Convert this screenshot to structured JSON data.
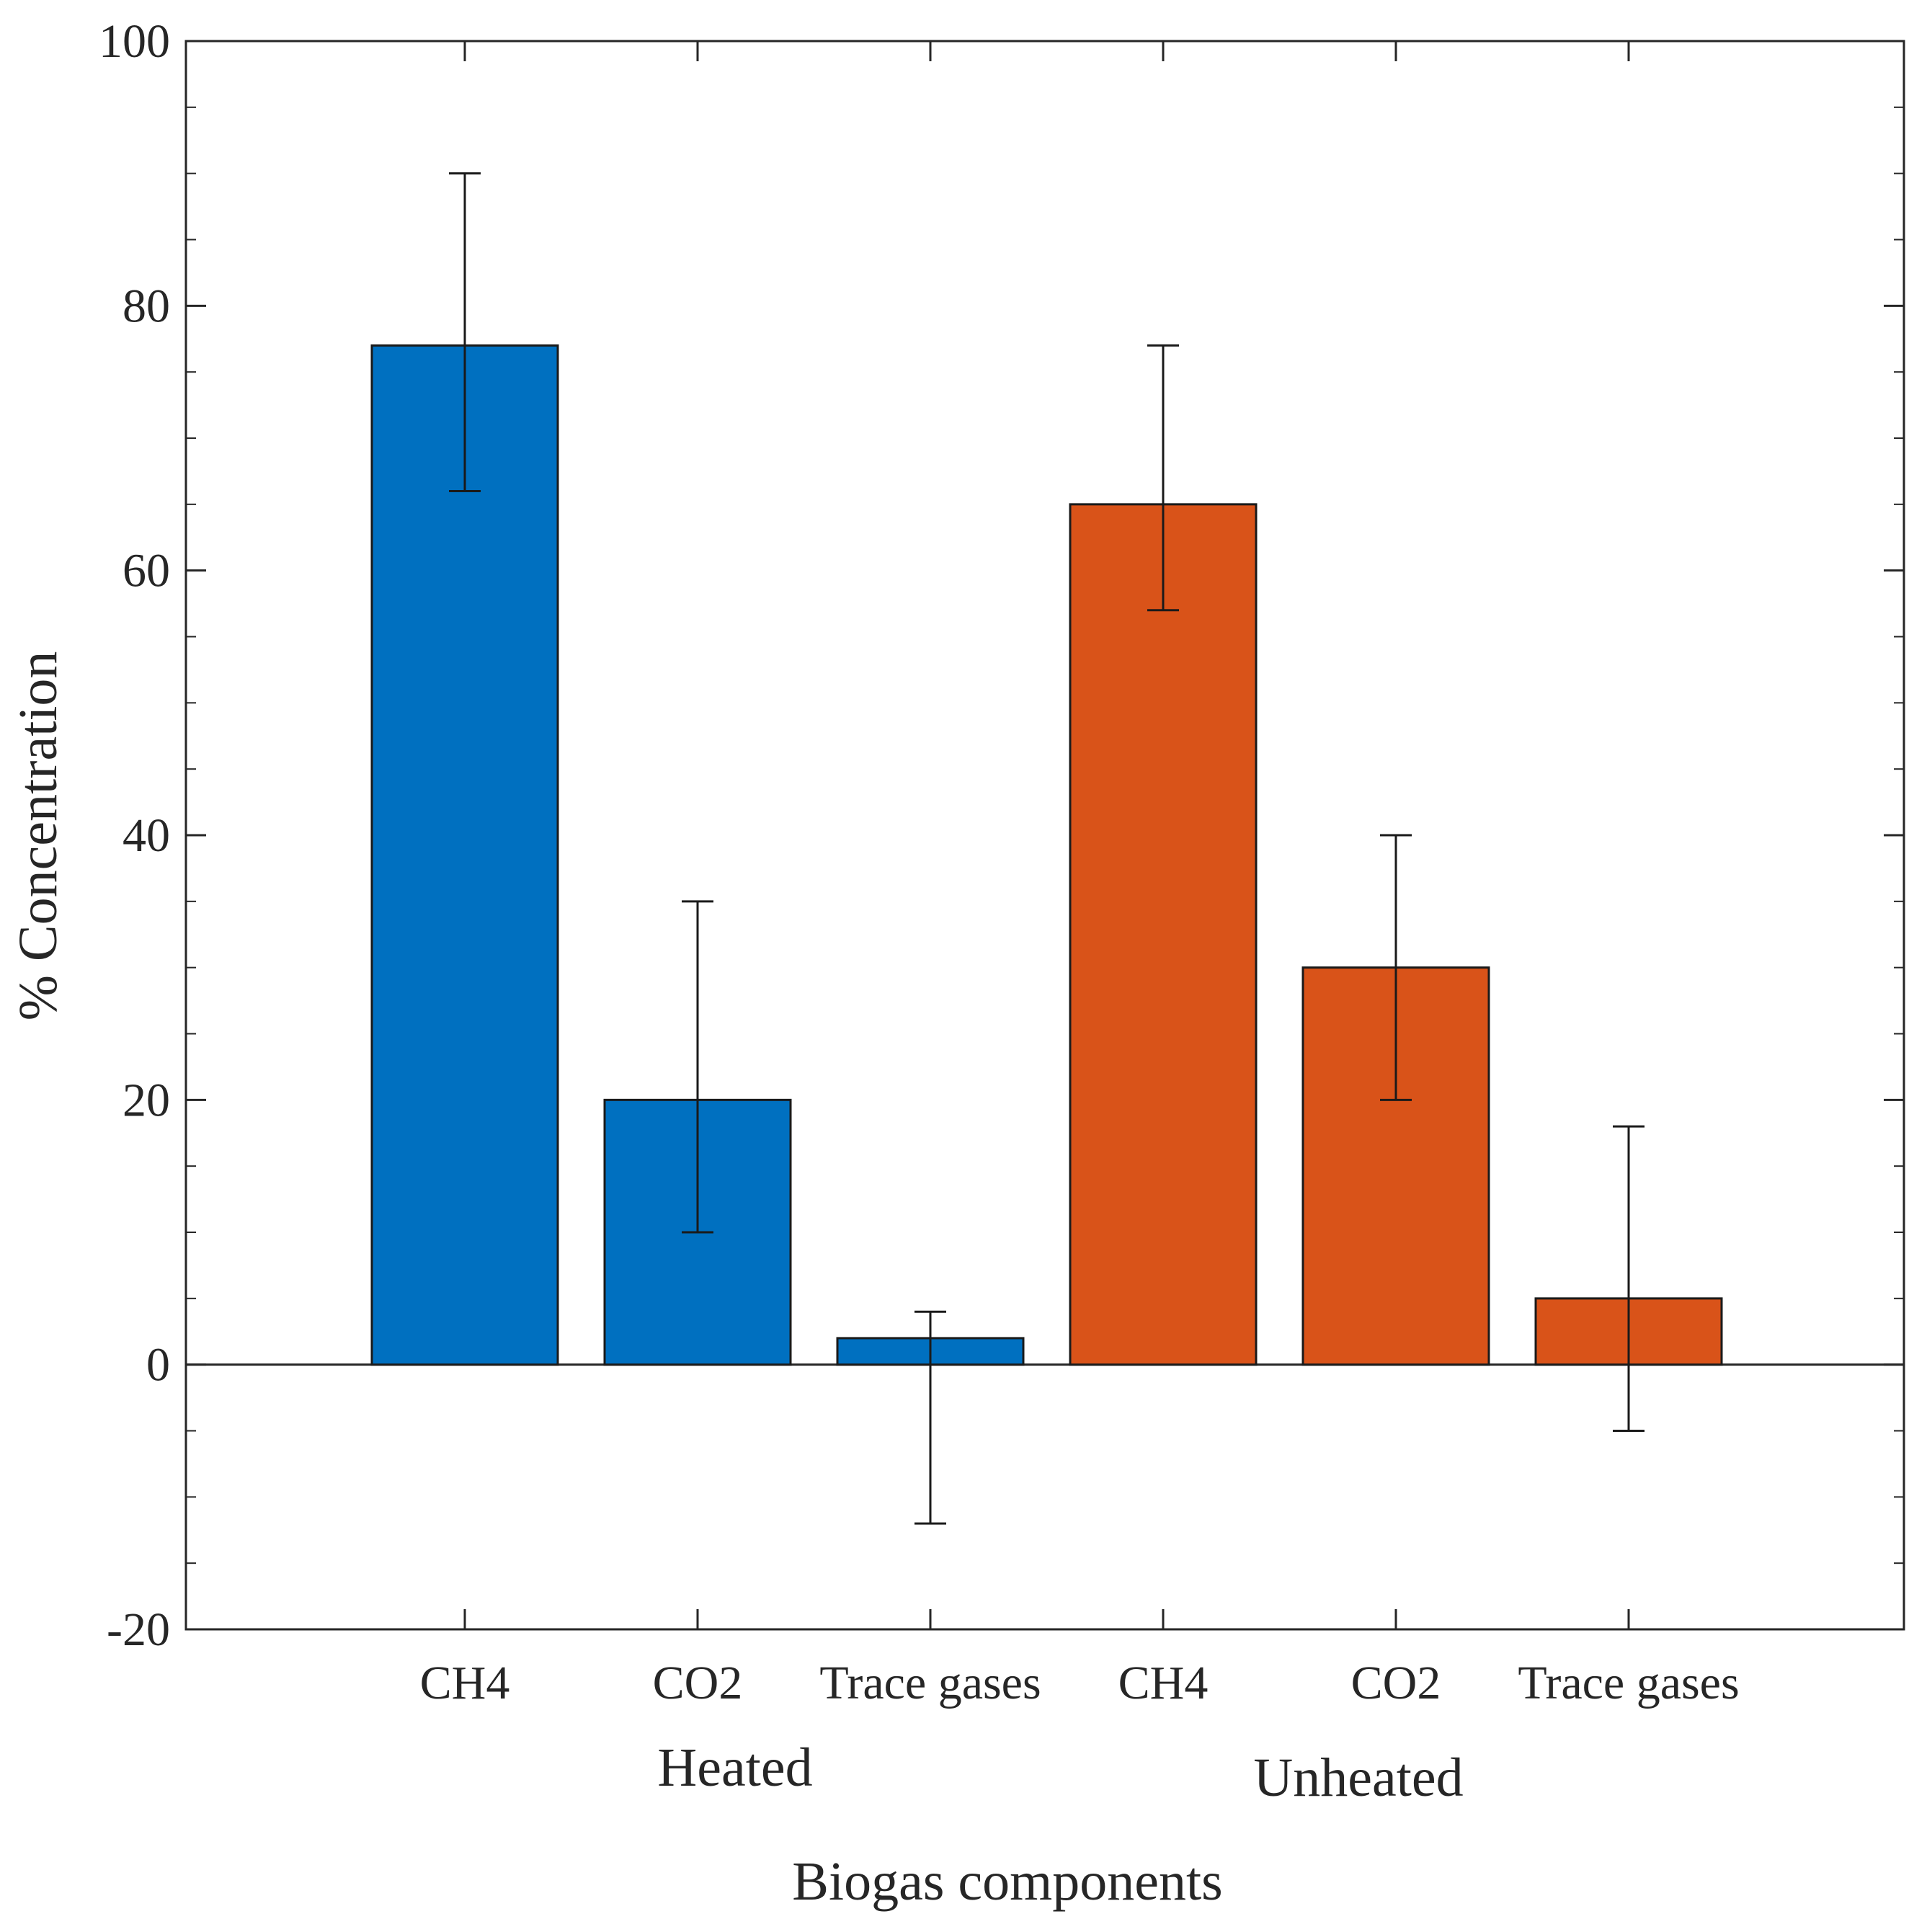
{
  "chart_data": {
    "type": "bar",
    "title": "",
    "xlabel": "Biogas components",
    "ylabel": "% Concentration",
    "ylim": [
      -20,
      100
    ],
    "yticks": [
      -20,
      0,
      20,
      40,
      60,
      80,
      100
    ],
    "grid": false,
    "categories": [
      "CH4",
      "CO2",
      "Trace gases",
      "CH4",
      "CO2",
      "Trace gases"
    ],
    "groups": [
      {
        "name": "Heated",
        "color": "#0070C0"
      },
      {
        "name": "Unheated",
        "color": "#D95319"
      }
    ],
    "bars": [
      {
        "group": "Heated",
        "category": "CH4",
        "value": 77,
        "err_low": 66,
        "err_high": 90
      },
      {
        "group": "Heated",
        "category": "CO2",
        "value": 20,
        "err_low": 10,
        "err_high": 35
      },
      {
        "group": "Heated",
        "category": "Trace gases",
        "value": 2,
        "err_low": -12,
        "err_high": 4
      },
      {
        "group": "Unheated",
        "category": "CH4",
        "value": 65,
        "err_low": 57,
        "err_high": 77
      },
      {
        "group": "Unheated",
        "category": "CO2",
        "value": 30,
        "err_low": 20,
        "err_high": 40
      },
      {
        "group": "Unheated",
        "category": "Trace gases",
        "value": 5,
        "err_low": -5,
        "err_high": 18
      }
    ]
  }
}
